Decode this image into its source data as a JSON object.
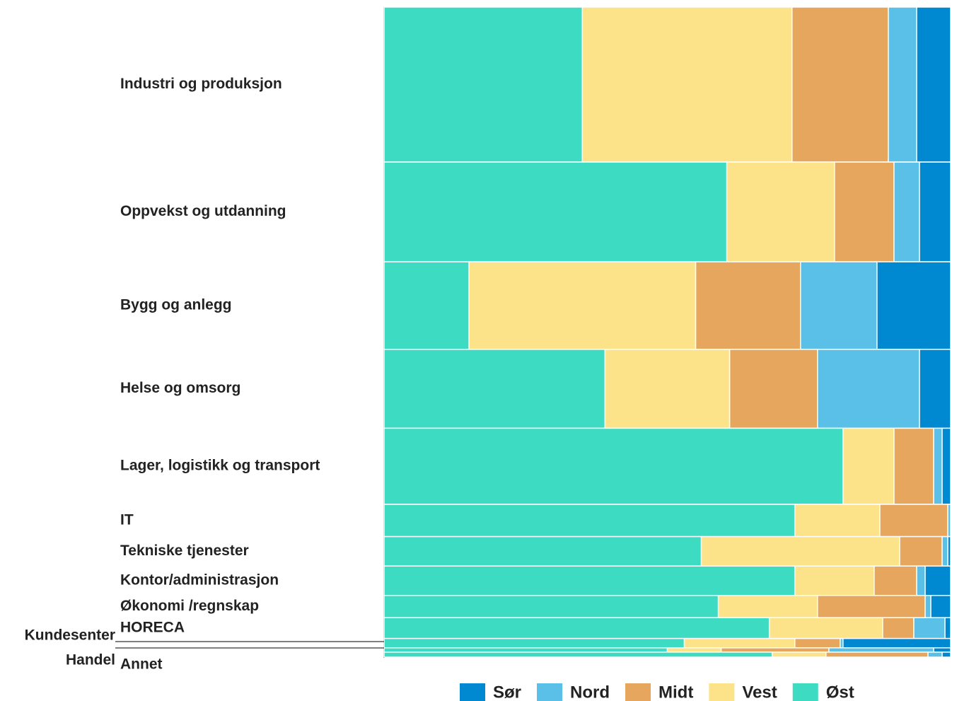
{
  "chart_data": {
    "type": "marimekko",
    "categories": [
      "Industri og produksjon",
      "Oppvekst og utdanning",
      "Bygg og anlegg",
      "Helse og omsorg",
      "Lager, logistikk og transport",
      "IT",
      "Tekniske tjenester",
      "Kontor/administrasjon",
      "Økonomi /regnskap",
      "HORECA",
      "Kundesenter",
      "Handel",
      "Annet"
    ],
    "sizes": [
      216,
      139,
      122,
      110,
      106,
      45,
      41,
      41,
      31,
      29,
      13,
      6,
      7
    ],
    "series": [
      {
        "name": "Sør",
        "color": "#0088d1",
        "values": [
          6,
          5.5,
          13,
          5.5,
          1.5,
          0,
          0.5,
          4.5,
          3.5,
          1,
          19,
          3,
          1.5
        ]
      },
      {
        "name": "Nord",
        "color": "#5bc0e8",
        "values": [
          5,
          4.5,
          13.5,
          18,
          1.5,
          0.5,
          1,
          1.5,
          1,
          5.5,
          0.5,
          18.5,
          2.5
        ]
      },
      {
        "name": "Midt",
        "color": "#e6a65d",
        "values": [
          17,
          10.5,
          18.5,
          15.5,
          7,
          12,
          7.5,
          7.5,
          19,
          5.5,
          8,
          19,
          18
        ]
      },
      {
        "name": "Vest",
        "color": "#fce38a",
        "values": [
          37,
          19,
          40,
          22,
          9,
          15,
          35,
          14,
          17.5,
          20,
          19.5,
          9.5,
          9.5
        ]
      },
      {
        "name": "Øst",
        "color": "#3ddbc1",
        "values": [
          35,
          60.5,
          15,
          39,
          81,
          72.5,
          56,
          72.5,
          59,
          68,
          53,
          50,
          68.5
        ]
      }
    ],
    "legend": "bottom"
  }
}
